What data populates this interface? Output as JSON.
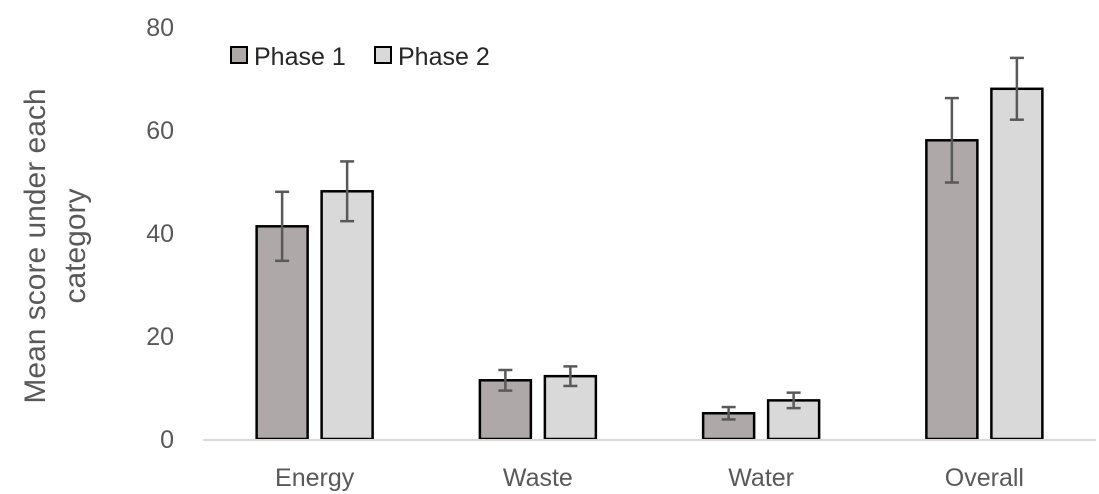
{
  "chart_data": {
    "type": "bar",
    "categories": [
      "Energy",
      "Waste",
      "Water",
      "Overall"
    ],
    "series": [
      {
        "name": "Phase 1",
        "values": [
          41.3,
          11.4,
          5.0,
          58.0
        ],
        "error": [
          6.7,
          2.0,
          1.2,
          8.2
        ],
        "color": "#aea8a8"
      },
      {
        "name": "Phase 2",
        "values": [
          48.1,
          12.2,
          7.5,
          68.0
        ],
        "error": [
          5.8,
          1.9,
          1.5,
          6.0
        ],
        "color": "#d9d9d9"
      }
    ],
    "title": "",
    "xlabel": "",
    "ylabel": "Mean score under each category",
    "ylabel_lines": [
      "Mean score under each",
      "category"
    ],
    "ylim": [
      0,
      80
    ],
    "yticks": [
      0,
      20,
      40,
      60,
      80
    ],
    "grid": false,
    "legend_position": "top-left",
    "error_bars": true,
    "colors": {
      "bar_outline": "#000000",
      "error_bar": "#595959",
      "axis_line": "#d9d9d9",
      "text": "#595959"
    }
  }
}
